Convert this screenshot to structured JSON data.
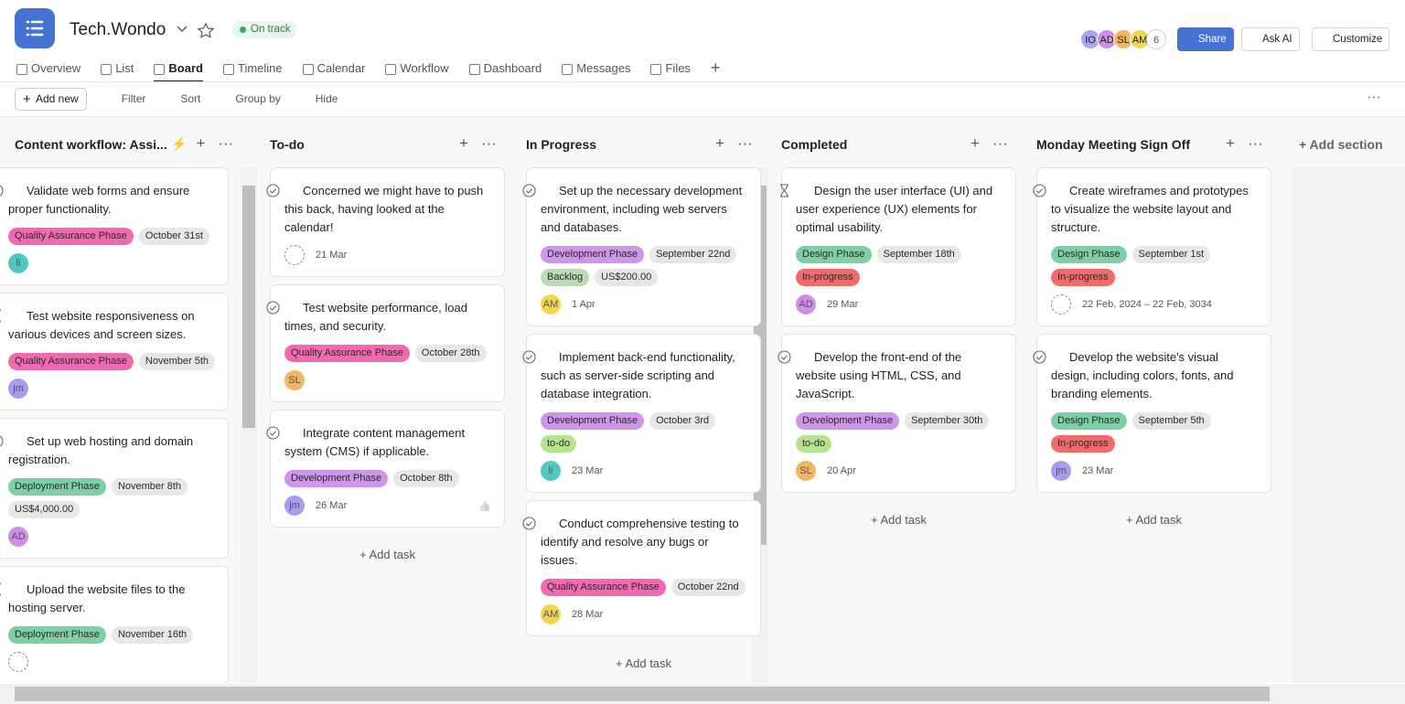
{
  "header": {
    "title": "Tech.Wondo",
    "status": "On track"
  },
  "members": {
    "avatars": [
      {
        "initials": "IO",
        "color": "#a9a6f2"
      },
      {
        "initials": "AD",
        "color": "#d08fe6"
      },
      {
        "initials": "SL",
        "color": "#f2b563"
      },
      {
        "initials": "AM",
        "color": "#f5d54e"
      }
    ],
    "count": 6
  },
  "buttons": {
    "share": "Share",
    "ask_ai": "Ask AI",
    "customize": "Customize"
  },
  "tabs": [
    "Overview",
    "List",
    "Board",
    "Timeline",
    "Calendar",
    "Workflow",
    "Dashboard",
    "Messages",
    "Files"
  ],
  "active_tab": 2,
  "toolbar": {
    "add_new": "Add new",
    "items": [
      "Filter",
      "Sort",
      "Group by",
      "Hide"
    ]
  },
  "add_task": "Add task",
  "add_section": "Add section",
  "columns": [
    {
      "title": "Content workflow: Assi...",
      "rule": true,
      "cards": [
        {
          "icon": "check",
          "title": "Validate web forms and ensure proper functionality.",
          "tags": [
            {
              "text": "Quality Assurance Phase",
              "color": "#f06aaf"
            },
            {
              "text": "October 31st",
              "color": "#e8e6e6"
            }
          ],
          "avatar": {
            "initials": "li",
            "color": "#4fc9c0"
          }
        },
        {
          "icon": "hourglass",
          "title": "Test website responsiveness on various devices and screen sizes.",
          "tags": [
            {
              "text": "Quality Assurance Phase",
              "color": "#f06aaf"
            },
            {
              "text": "November 5th",
              "color": "#e8e6e6"
            }
          ],
          "avatar": {
            "initials": "jm",
            "color": "#a99cf0"
          }
        },
        {
          "icon": "check",
          "title": "Set up web hosting and domain registration.",
          "tags": [
            {
              "text": "Deployment Phase",
              "color": "#7dcfa5"
            },
            {
              "text": "November 8th",
              "color": "#e8e6e6"
            },
            {
              "text": "US$4,000.00",
              "color": "#e8e6e6"
            }
          ],
          "avatar": {
            "initials": "AD",
            "color": "#d08fe6"
          }
        },
        {
          "icon": "hourglass",
          "title": "Upload the website files to the hosting server.",
          "tags": [
            {
              "text": "Deployment Phase",
              "color": "#7dcfa5"
            },
            {
              "text": "November 16th",
              "color": "#e8e6e6"
            }
          ]
        }
      ]
    },
    {
      "title": "To-do",
      "cards": [
        {
          "icon": "check",
          "title": "Concerned we might have to push this back, having looked at the calendar!",
          "tags": [],
          "date": "21 Mar"
        },
        {
          "icon": "check",
          "title": "Test website performance, load times, and security.",
          "tags": [
            {
              "text": "Quality Assurance Phase",
              "color": "#f06aaf"
            },
            {
              "text": "October 28th",
              "color": "#e8e6e6"
            }
          ],
          "avatar": {
            "initials": "SL",
            "color": "#f2b563"
          }
        },
        {
          "icon": "check",
          "title": "Integrate content management system (CMS) if applicable.",
          "tags": [
            {
              "text": "Development Phase",
              "color": "#cf95e8"
            },
            {
              "text": "October 8th",
              "color": "#e8e6e6"
            }
          ],
          "avatar": {
            "initials": "jm",
            "color": "#a99cf0"
          },
          "date": "26 Mar",
          "like": true
        }
      ]
    },
    {
      "title": "In Progress",
      "cards": [
        {
          "icon": "check",
          "title": "Set up the necessary development environment, including web servers and databases.",
          "tags": [
            {
              "text": "Development Phase",
              "color": "#cf95e8"
            },
            {
              "text": "September 22nd",
              "color": "#e8e6e6"
            },
            {
              "text": "Backlog",
              "color": "#b9dcb3"
            },
            {
              "text": "US$200.00",
              "color": "#e8e6e6"
            }
          ],
          "avatar": {
            "initials": "AM",
            "color": "#f5d54e"
          },
          "date": "1 Apr"
        },
        {
          "icon": "check",
          "title": "Implement back-end functionality, such as server-side scripting and database integration.",
          "tags": [
            {
              "text": "Development Phase",
              "color": "#cf95e8"
            },
            {
              "text": "October 3rd",
              "color": "#e8e6e6"
            },
            {
              "text": "to-do",
              "color": "#b7e38e"
            }
          ],
          "avatar": {
            "initials": "li",
            "color": "#4fc9c0"
          },
          "date": "23 Mar"
        },
        {
          "icon": "check",
          "title": "Conduct comprehensive testing to identify and resolve any bugs or issues.",
          "tags": [
            {
              "text": "Quality Assurance Phase",
              "color": "#f06aaf"
            },
            {
              "text": "October 22nd",
              "color": "#e8e6e6"
            }
          ],
          "avatar": {
            "initials": "AM",
            "color": "#f5d54e"
          },
          "date": "28 Mar"
        }
      ]
    },
    {
      "title": "Completed",
      "cards": [
        {
          "icon": "hourglass",
          "title": "Design the user interface (UI) and user experience (UX) elements for optimal usability.",
          "tags": [
            {
              "text": "Design Phase",
              "color": "#7dcfa5"
            },
            {
              "text": "September 18th",
              "color": "#e8e6e6"
            },
            {
              "text": "In-progress",
              "color": "#f06b6b"
            }
          ],
          "avatar": {
            "initials": "AD",
            "color": "#d08fe6"
          },
          "date": "29 Mar"
        },
        {
          "icon": "check",
          "title": "Develop the front-end of the website using HTML, CSS, and JavaScript.",
          "tags": [
            {
              "text": "Development Phase",
              "color": "#cf95e8"
            },
            {
              "text": "September 30th",
              "color": "#e8e6e6"
            },
            {
              "text": "to-do",
              "color": "#b7e38e"
            }
          ],
          "avatar": {
            "initials": "SL",
            "color": "#f2b563"
          },
          "date": "20 Apr"
        }
      ]
    },
    {
      "title": "Monday Meeting Sign Off",
      "cards": [
        {
          "icon": "check",
          "title": "Create wireframes and prototypes to visualize the website layout and structure.",
          "tags": [
            {
              "text": "Design Phase",
              "color": "#7dcfa5"
            },
            {
              "text": "September 1st",
              "color": "#e8e6e6"
            },
            {
              "text": "In-progress",
              "color": "#f06b6b"
            }
          ],
          "date": "22 Feb, 2024 – 22 Feb, 3034"
        },
        {
          "icon": "check",
          "title": "Develop the website's visual design, including colors, fonts, and branding elements.",
          "tags": [
            {
              "text": "Design Phase",
              "color": "#7dcfa5"
            },
            {
              "text": "September 5th",
              "color": "#e8e6e6"
            },
            {
              "text": "In-progress",
              "color": "#f06b6b"
            }
          ],
          "avatar": {
            "initials": "jm",
            "color": "#a99cf0"
          },
          "date": "23 Mar"
        }
      ]
    }
  ]
}
